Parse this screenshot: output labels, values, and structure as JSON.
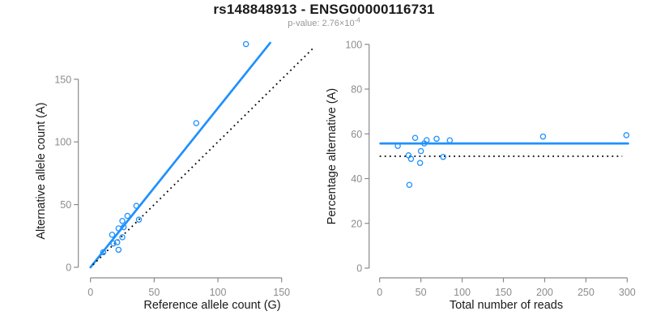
{
  "header": {
    "title": "rs148848913 - ENSG00000116731",
    "subtitle_prefix": "p-value: 2.76×10",
    "subtitle_exponent": "-4"
  },
  "colors": {
    "accent_blue": "#1E90FF",
    "axis_gray": "#898989",
    "tick_label_gray": "#8c8c8c",
    "axis_title_black": "#1a1a1a",
    "dotted_black": "#000000",
    "background": "#ffffff"
  },
  "chart_data": [
    {
      "type": "scatter",
      "name": "allele-counts-scatter",
      "xlabel": "Reference allele count (G)",
      "ylabel": "Alternative allele count (A)",
      "xlim": [
        0,
        178
      ],
      "ylim": [
        0,
        182
      ],
      "xticks": [
        0,
        50,
        100,
        150
      ],
      "yticks": [
        0,
        50,
        100,
        150
      ],
      "grid": false,
      "legend": "none",
      "points": [
        [
          10,
          12
        ],
        [
          18,
          19
        ],
        [
          21,
          20
        ],
        [
          22,
          14
        ],
        [
          17,
          26
        ],
        [
          25,
          24
        ],
        [
          22,
          31
        ],
        [
          26,
          32
        ],
        [
          25,
          37
        ],
        [
          29,
          41
        ],
        [
          36,
          49
        ],
        [
          38,
          38
        ],
        [
          83,
          115
        ],
        [
          122,
          178
        ]
      ],
      "lines": [
        {
          "name": "regression-fit-line",
          "style": "solid",
          "color_key": "accent_blue",
          "width": 2.7,
          "x1": 0,
          "y1": 0,
          "x2": 141,
          "y2": 179
        },
        {
          "name": "identity-diagonal-line",
          "style": "dotted",
          "color_key": "dotted_black",
          "width": 1.8,
          "x1": 2,
          "y1": 2,
          "x2": 176,
          "y2": 176
        }
      ]
    },
    {
      "type": "scatter",
      "name": "percentage-vs-coverage-scatter",
      "xlabel": "Total number of reads",
      "ylabel": "Percentage alternative (A)",
      "xlim": [
        0,
        305
      ],
      "ylim": [
        0,
        100
      ],
      "xticks": [
        0,
        50,
        100,
        150,
        200,
        250,
        300
      ],
      "yticks": [
        0,
        20,
        40,
        60,
        80,
        100
      ],
      "grid": false,
      "legend": "none",
      "points": [
        [
          22,
          54.6
        ],
        [
          35,
          50.4
        ],
        [
          36,
          37.2
        ],
        [
          38,
          48.8
        ],
        [
          43,
          58.2
        ],
        [
          49,
          47.0
        ],
        [
          50,
          52.3
        ],
        [
          54,
          55.7
        ],
        [
          57,
          57.2
        ],
        [
          69,
          57.8
        ],
        [
          77,
          49.7
        ],
        [
          85,
          57.1
        ],
        [
          198,
          58.8
        ],
        [
          299,
          59.4
        ]
      ],
      "lines": [
        {
          "name": "mean-percentage-line",
          "style": "solid",
          "color_key": "accent_blue",
          "width": 2.8,
          "x1": 1,
          "y1": 55.7,
          "x2": 301,
          "y2": 55.7
        },
        {
          "name": "fifty-percent-reference-line",
          "style": "dotted",
          "color_key": "dotted_black",
          "width": 1.8,
          "x1": 0,
          "y1": 50,
          "x2": 294,
          "y2": 50
        }
      ]
    }
  ]
}
